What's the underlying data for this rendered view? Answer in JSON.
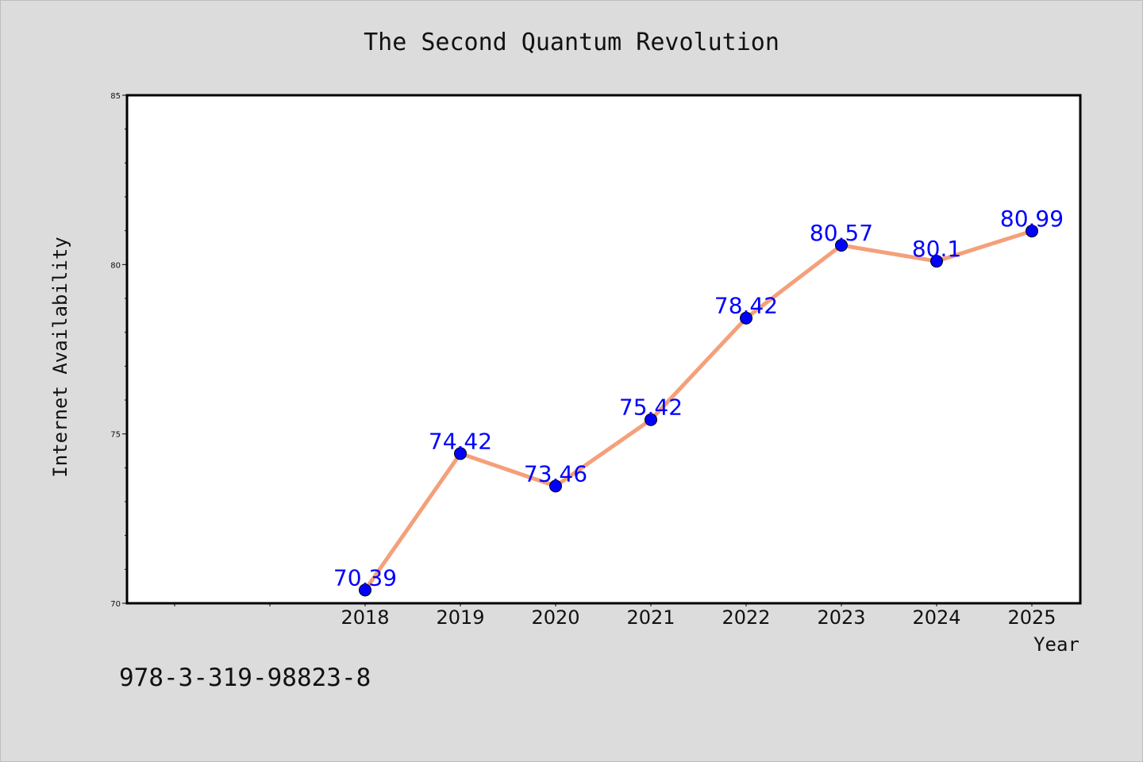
{
  "chart_data": {
    "type": "line",
    "title": "The Second Quantum Revolution",
    "xlabel": "Year",
    "ylabel": "Internet Availability",
    "categories": [
      "2018",
      "2019",
      "2020",
      "2021",
      "2022",
      "2023",
      "2024",
      "2025"
    ],
    "values": [
      70.39,
      74.42,
      73.46,
      75.42,
      78.42,
      80.57,
      80.1,
      80.99
    ],
    "value_labels": [
      "70.39",
      "74.42",
      "73.46",
      "75.42",
      "78.42",
      "80.57",
      "80.1",
      "80.99"
    ],
    "yticks": [
      "70",
      "75",
      "80",
      "85"
    ],
    "ylim": [
      70,
      85
    ],
    "grid": false,
    "line_color": "#f4a07a",
    "marker_color": "#0000ff",
    "label_color": "#0000ff"
  },
  "footer": {
    "isbn": "978-3-319-98823-8"
  }
}
